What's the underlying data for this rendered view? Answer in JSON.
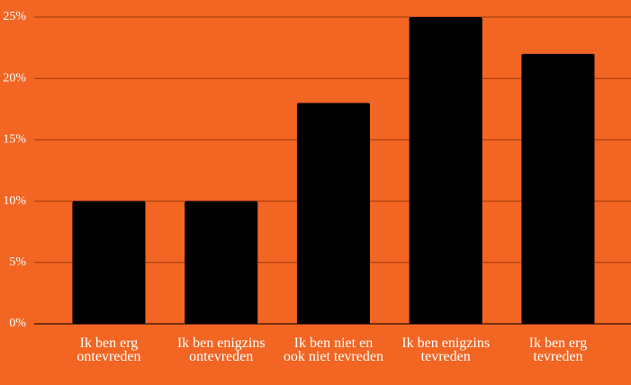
{
  "chart_data": {
    "type": "bar",
    "categories": [
      "Ik ben erg ontevreden",
      "Ik ben enigzins ontevreden",
      "Ik ben niet en ook niet tevreden",
      "Ik ben enigzins tevreden",
      "Ik ben erg tevreden"
    ],
    "values": [
      10,
      10,
      18,
      25,
      22
    ],
    "color": "#000000",
    "background": "#f26522",
    "ylim": [
      0,
      25
    ],
    "yticks": [
      {
        "value": 0,
        "label": "0%"
      },
      {
        "value": 5,
        "label": "5%"
      },
      {
        "value": 10,
        "label": "10%"
      },
      {
        "value": 15,
        "label": "15%"
      },
      {
        "value": 20,
        "label": "20%"
      },
      {
        "value": 25,
        "label": "25%"
      }
    ],
    "grid": true
  }
}
